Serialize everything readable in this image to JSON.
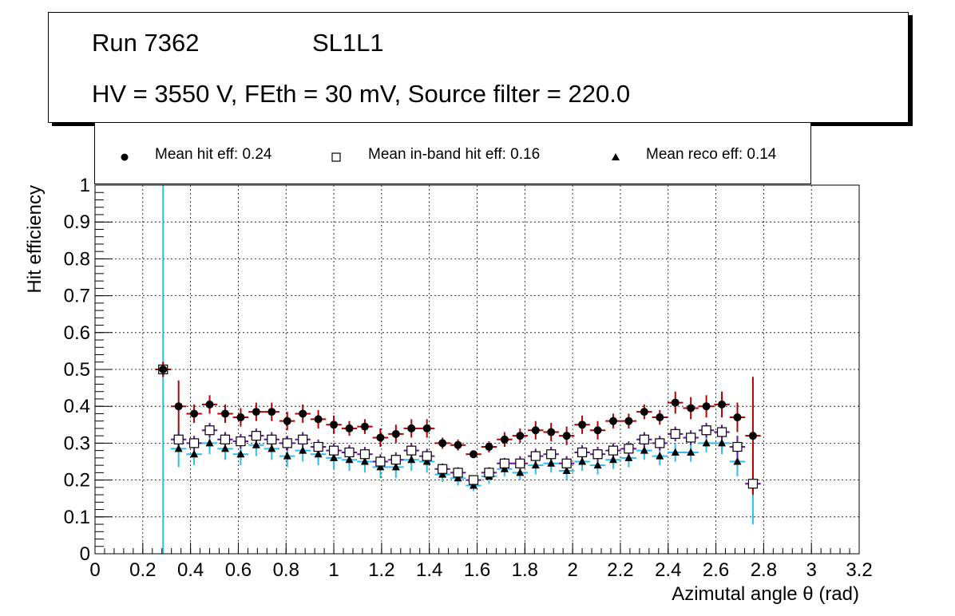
{
  "header": {
    "run": "Run 7362",
    "layer": "SL1L1",
    "conditions": "HV = 3550 V, FEth = 30 mV, Source filter = 220.0"
  },
  "legend": {
    "hit": "Mean hit  eff: 0.24",
    "inband": "Mean in-band hit eff: 0.16",
    "reco": "Mean reco eff: 0.14"
  },
  "chart_data": {
    "type": "scatter",
    "title": "Run 7362 SL1L1 — HV = 3550 V, FEth = 30 mV, Source filter = 220.0",
    "xlabel": "Azimutal angle θ (rad)",
    "ylabel": "Hit efficiency",
    "xlim": [
      0,
      3.2
    ],
    "ylim": [
      0,
      1
    ],
    "grid": true,
    "legend_position": "top",
    "x_ticks": [
      "0",
      "0.2",
      "0.4",
      "0.6",
      "0.8",
      "1",
      "1.2",
      "1.4",
      "1.6",
      "1.8",
      "2",
      "2.2",
      "2.4",
      "2.6",
      "2.8",
      "3",
      "3.2"
    ],
    "y_ticks": [
      "0",
      "0.1",
      "0.2",
      "0.3",
      "0.4",
      "0.5",
      "0.6",
      "0.7",
      "0.8",
      "0.9",
      "1"
    ],
    "x": [
      0.285,
      0.35,
      0.415,
      0.48,
      0.545,
      0.61,
      0.675,
      0.74,
      0.805,
      0.87,
      0.935,
      1.0,
      1.065,
      1.13,
      1.195,
      1.26,
      1.325,
      1.39,
      1.455,
      1.52,
      1.585,
      1.65,
      1.715,
      1.78,
      1.845,
      1.91,
      1.975,
      2.04,
      2.105,
      2.17,
      2.235,
      2.3,
      2.365,
      2.43,
      2.495,
      2.56,
      2.625,
      2.69,
      2.755
    ],
    "series": [
      {
        "name": "Mean hit  eff: 0.24",
        "marker": "filled-circle",
        "color": "#000000",
        "error_color": "#b40000",
        "values": [
          0.5,
          0.4,
          0.38,
          0.405,
          0.38,
          0.37,
          0.385,
          0.385,
          0.36,
          0.38,
          0.365,
          0.35,
          0.34,
          0.345,
          0.315,
          0.325,
          0.34,
          0.34,
          0.3,
          0.295,
          0.27,
          0.29,
          0.31,
          0.32,
          0.335,
          0.33,
          0.32,
          0.35,
          0.335,
          0.36,
          0.36,
          0.385,
          0.37,
          0.41,
          0.395,
          0.4,
          0.405,
          0.37,
          0.32
        ],
        "errors": [
          0.02,
          0.07,
          0.025,
          0.025,
          0.025,
          0.025,
          0.025,
          0.025,
          0.025,
          0.025,
          0.025,
          0.025,
          0.02,
          0.02,
          0.025,
          0.025,
          0.025,
          0.025,
          0.015,
          0.015,
          0.01,
          0.015,
          0.02,
          0.02,
          0.025,
          0.025,
          0.025,
          0.025,
          0.025,
          0.02,
          0.02,
          0.02,
          0.02,
          0.03,
          0.03,
          0.03,
          0.035,
          0.04,
          0.16
        ]
      },
      {
        "name": "Mean in-band hit eff: 0.16",
        "marker": "open-square",
        "color": "#000000",
        "error_color": "#6a0dad",
        "values": [
          0.5,
          0.31,
          0.3,
          0.335,
          0.31,
          0.305,
          0.32,
          0.31,
          0.3,
          0.31,
          0.29,
          0.28,
          0.275,
          0.27,
          0.25,
          0.255,
          0.28,
          0.265,
          0.23,
          0.22,
          0.2,
          0.22,
          0.245,
          0.245,
          0.265,
          0.27,
          0.245,
          0.275,
          0.27,
          0.28,
          0.285,
          0.31,
          0.3,
          0.325,
          0.315,
          0.335,
          0.33,
          0.29,
          0.19
        ],
        "errors": [
          0.02,
          0.02,
          0.02,
          0.02,
          0.02,
          0.02,
          0.02,
          0.02,
          0.02,
          0.02,
          0.02,
          0.02,
          0.02,
          0.02,
          0.02,
          0.02,
          0.02,
          0.02,
          0.015,
          0.015,
          0.01,
          0.015,
          0.015,
          0.02,
          0.02,
          0.02,
          0.02,
          0.02,
          0.02,
          0.02,
          0.02,
          0.02,
          0.02,
          0.02,
          0.02,
          0.02,
          0.02,
          0.03,
          0.02
        ]
      },
      {
        "name": "Mean reco eff: 0.14",
        "marker": "filled-triangle",
        "color": "#000000",
        "error_color": "#2ebdf0",
        "values": [
          0.5,
          0.285,
          0.27,
          0.3,
          0.285,
          0.27,
          0.295,
          0.285,
          0.265,
          0.28,
          0.27,
          0.26,
          0.255,
          0.25,
          0.235,
          0.235,
          0.255,
          0.25,
          0.215,
          0.205,
          0.185,
          0.21,
          0.23,
          0.22,
          0.24,
          0.245,
          0.225,
          0.25,
          0.24,
          0.255,
          0.26,
          0.28,
          0.265,
          0.275,
          0.275,
          0.3,
          0.3,
          0.25,
          0.19
        ],
        "errors": [
          0.5,
          0.05,
          0.03,
          0.03,
          0.03,
          0.03,
          0.03,
          0.03,
          0.03,
          0.03,
          0.03,
          0.03,
          0.03,
          0.03,
          0.03,
          0.03,
          0.03,
          0.03,
          0.02,
          0.02,
          0.015,
          0.02,
          0.02,
          0.02,
          0.025,
          0.025,
          0.025,
          0.025,
          0.025,
          0.025,
          0.025,
          0.025,
          0.025,
          0.025,
          0.025,
          0.025,
          0.03,
          0.04,
          0.11
        ]
      }
    ]
  }
}
